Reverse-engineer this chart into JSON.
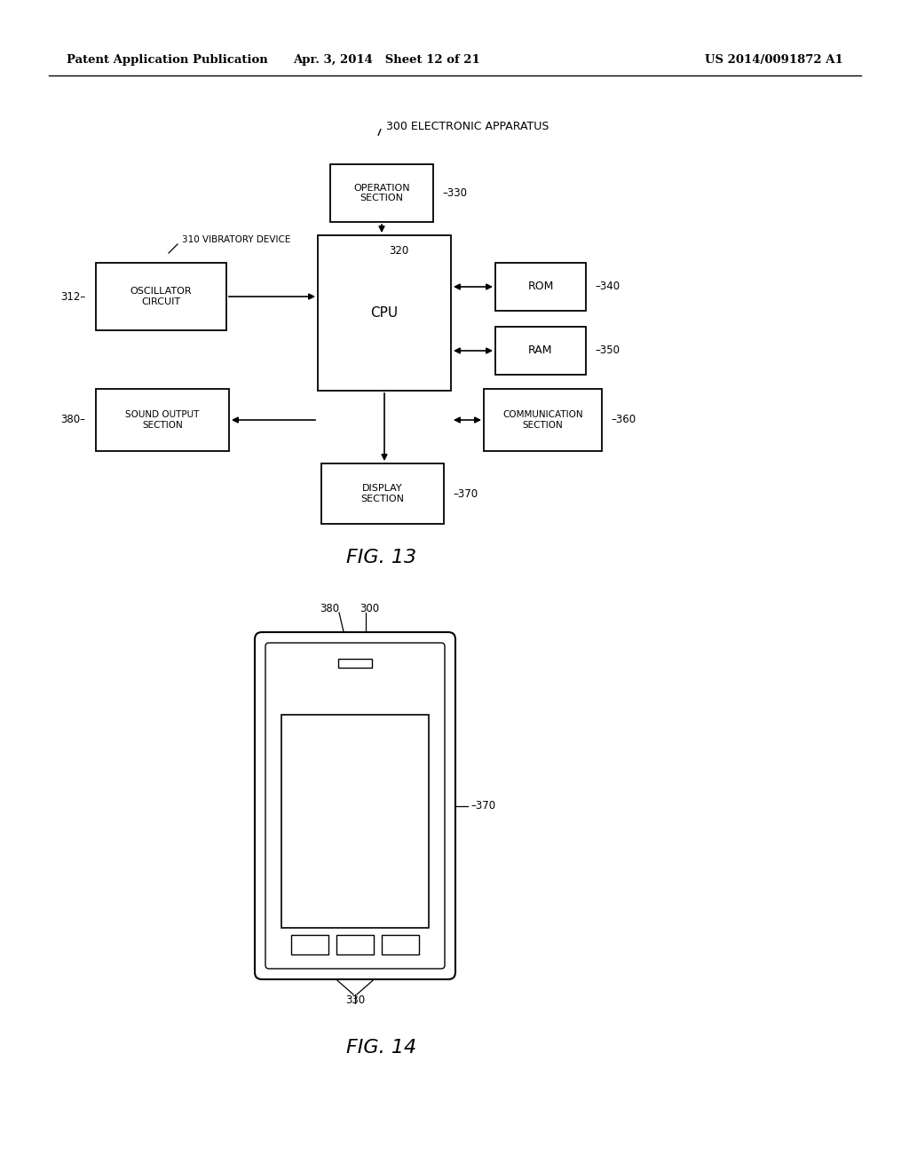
{
  "bg_color": "#ffffff",
  "header_left": "Patent Application Publication",
  "header_mid": "Apr. 3, 2014   Sheet 12 of 21",
  "header_right": "US 2014/0091872 A1",
  "fig13_label": "FIG. 13",
  "fig14_label": "FIG. 14"
}
